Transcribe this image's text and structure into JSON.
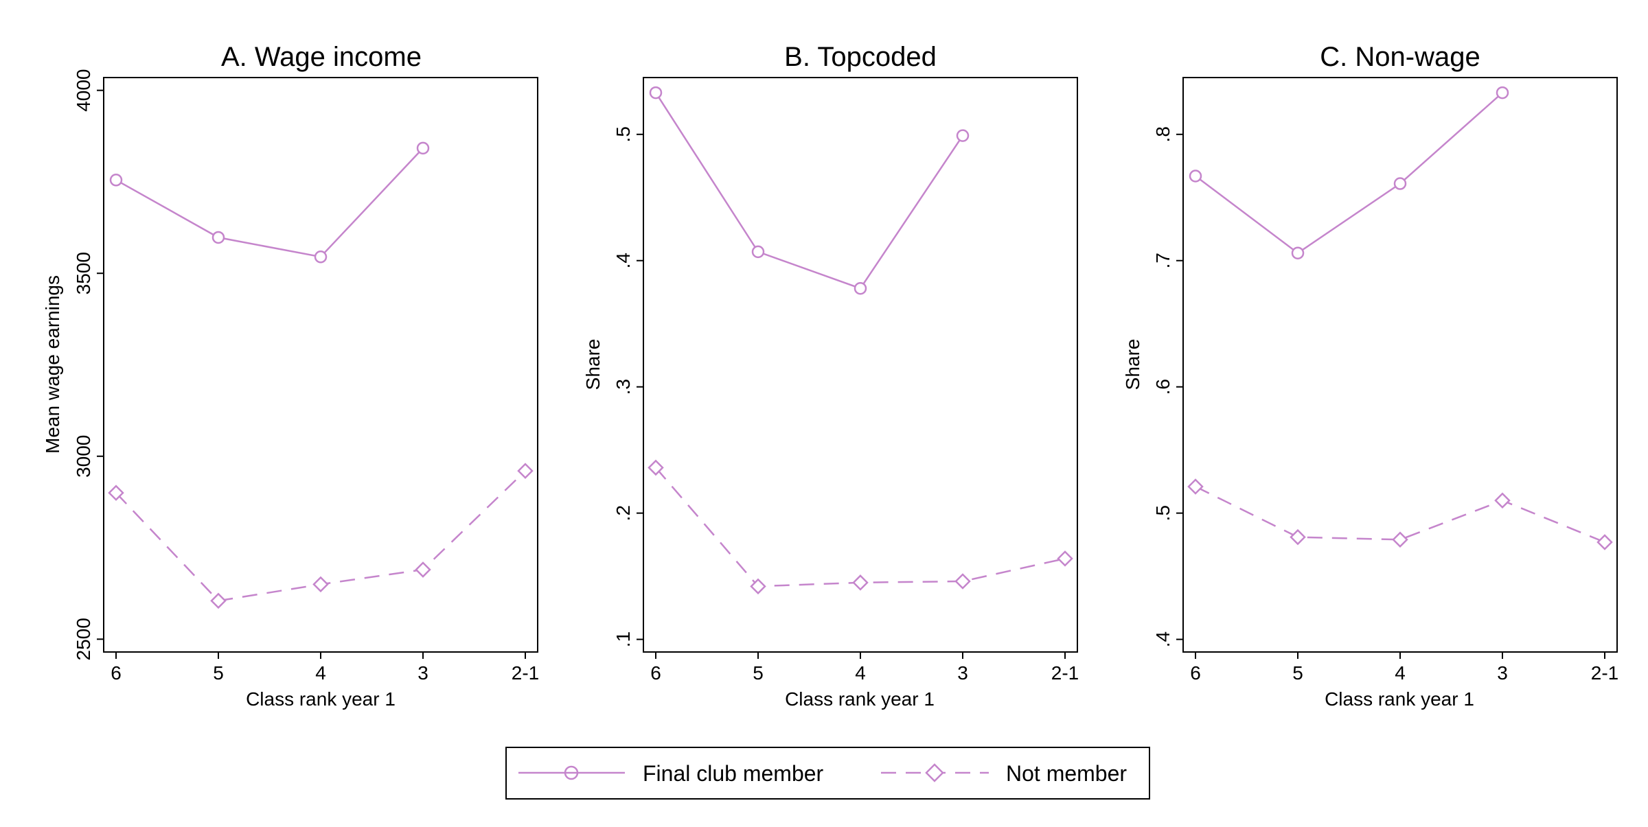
{
  "colors": {
    "series": "#c585cc",
    "axis": "#000000",
    "background": "#ffffff"
  },
  "chart_data": [
    {
      "type": "line",
      "title": "A. Wage income",
      "xlabel": "Class rank year 1",
      "ylabel": "Mean wage earnings",
      "categories": [
        "6",
        "5",
        "4",
        "3",
        "2-1"
      ],
      "ylim": [
        2465,
        4035
      ],
      "yticks": [
        2500,
        3000,
        3500,
        4000
      ],
      "ytick_labels": [
        "2500",
        "3000",
        "3500",
        "4000"
      ],
      "series": [
        {
          "name": "Final club member",
          "marker": "circle",
          "style": "solid",
          "values": [
            3755,
            3598,
            3545,
            3842,
            null
          ]
        },
        {
          "name": "Not member",
          "marker": "diamond",
          "style": "dashed",
          "values": [
            2900,
            2605,
            2650,
            2690,
            2960
          ]
        }
      ]
    },
    {
      "type": "line",
      "title": "B. Topcoded",
      "xlabel": "Class rank year 1",
      "ylabel": "Share",
      "categories": [
        "6",
        "5",
        "4",
        "3",
        "2-1"
      ],
      "ylim": [
        0.09,
        0.545
      ],
      "yticks": [
        0.1,
        0.2,
        0.3,
        0.4,
        0.5
      ],
      "ytick_labels": [
        ".1",
        ".2",
        ".3",
        ".4",
        ".5"
      ],
      "series": [
        {
          "name": "Final club member",
          "marker": "circle",
          "style": "solid",
          "values": [
            0.533,
            0.407,
            0.378,
            0.499,
            null
          ]
        },
        {
          "name": "Not member",
          "marker": "diamond",
          "style": "dashed",
          "values": [
            0.236,
            0.142,
            0.145,
            0.146,
            0.164
          ]
        }
      ]
    },
    {
      "type": "line",
      "title": "C. Non-wage",
      "xlabel": "Class rank year 1",
      "ylabel": "Share",
      "categories": [
        "6",
        "5",
        "4",
        "3",
        "2-1"
      ],
      "ylim": [
        0.39,
        0.845
      ],
      "yticks": [
        0.4,
        0.5,
        0.6,
        0.7,
        0.8
      ],
      "ytick_labels": [
        ".4",
        ".5",
        ".6",
        ".7",
        ".8"
      ],
      "series": [
        {
          "name": "Final club member",
          "marker": "circle",
          "style": "solid",
          "values": [
            0.767,
            0.706,
            0.761,
            0.833,
            null
          ]
        },
        {
          "name": "Not member",
          "marker": "diamond",
          "style": "dashed",
          "values": [
            0.521,
            0.481,
            0.479,
            0.51,
            0.477
          ]
        }
      ]
    }
  ],
  "legend": {
    "placement": "bottom-center",
    "items": [
      {
        "label": "Final club member",
        "marker": "circle",
        "style": "solid"
      },
      {
        "label": "Not member",
        "marker": "diamond",
        "style": "dashed"
      }
    ]
  }
}
